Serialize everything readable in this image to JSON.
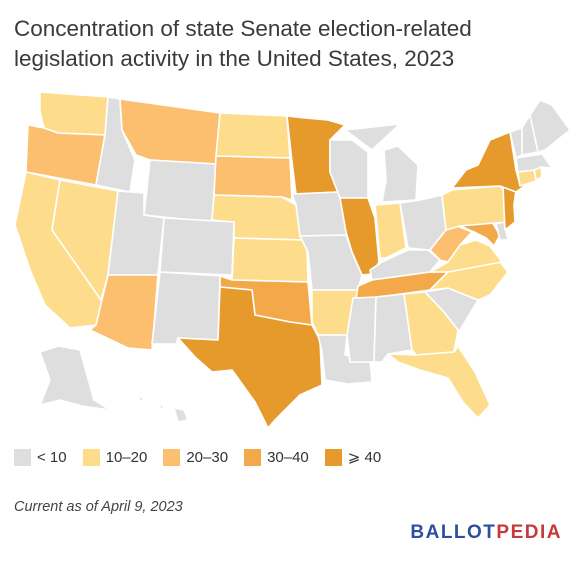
{
  "title": "Concentration of state Senate election-related legislation activity in the United States, 2023",
  "footnote": "Current as of April 9, 2023",
  "brand": {
    "part1": "BALLOT",
    "part2": "PEDIA",
    "color1": "#2d4f9e",
    "color2": "#c53a39"
  },
  "legend": [
    {
      "label": "< 10",
      "color": "#dedede"
    },
    {
      "label": "10–20",
      "color": "#fddc8c"
    },
    {
      "label": "20–30",
      "color": "#fbbf6f"
    },
    {
      "label": "30–40",
      "color": "#f3a84a"
    },
    {
      "label": "⩾ 40",
      "color": "#e79a2c"
    }
  ],
  "categories": {
    "WA": 1,
    "OR": 2,
    "CA": 1,
    "NV": 1,
    "ID": 0,
    "MT": 2,
    "WY": 0,
    "UT": 0,
    "AZ": 2,
    "CO": 0,
    "NM": 0,
    "ND": 1,
    "SD": 2,
    "NE": 1,
    "KS": 1,
    "OK": 3,
    "TX": 4,
    "MN": 4,
    "IA": 0,
    "MO": 0,
    "AR": 1,
    "LA": 0,
    "WI": 0,
    "IL": 4,
    "MI": 0,
    "IN": 1,
    "OH": 0,
    "KY": 0,
    "TN": 3,
    "MS": 0,
    "AL": 0,
    "GA": 1,
    "FL": 1,
    "SC": 0,
    "NC": 1,
    "VA": 1,
    "WV": 2,
    "MD": 3,
    "DE": 0,
    "PA": 1,
    "NJ": 4,
    "NY": 4,
    "CT": 1,
    "RI": 1,
    "MA": 0,
    "VT": 0,
    "NH": 0,
    "ME": 0,
    "AK": 0,
    "HI": 0
  }
}
